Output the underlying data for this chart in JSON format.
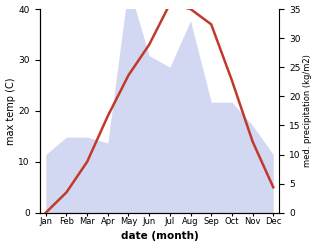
{
  "months": [
    "Jan",
    "Feb",
    "Mar",
    "Apr",
    "May",
    "Jun",
    "Jul",
    "Aug",
    "Sep",
    "Oct",
    "Nov",
    "Dec"
  ],
  "temperature": [
    0,
    4,
    10,
    19,
    27,
    33,
    41,
    40,
    37,
    26,
    14,
    5
  ],
  "precipitation": [
    10,
    13,
    13,
    12,
    39,
    27,
    25,
    33,
    19,
    19,
    15,
    10
  ],
  "temp_color": "#c0392b",
  "precip_fill_color": "#b0b8e8",
  "ylabel_left": "max temp (C)",
  "ylabel_right": "med. precipitation (kg/m2)",
  "xlabel": "date (month)",
  "ylim_left": [
    0,
    40
  ],
  "ylim_right": [
    0,
    35
  ],
  "yticks_left": [
    0,
    10,
    20,
    30,
    40
  ],
  "yticks_right": [
    0,
    5,
    10,
    15,
    20,
    25,
    30,
    35
  ],
  "bg_color": "#ffffff",
  "temp_linewidth": 1.8,
  "fill_alpha": 0.55
}
